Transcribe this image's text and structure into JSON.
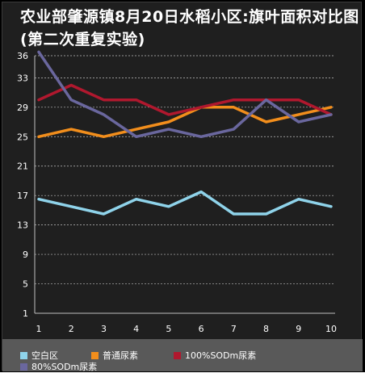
{
  "title": "农业部肇源镇8月20日水稻小区:旗叶面积对比图(第二次重复实验)",
  "colors": {
    "background": "#1f1f1f",
    "legend_bar": "#595959",
    "grid": "#bfbfbf",
    "axis_text": "#ffffff"
  },
  "chart_data": {
    "type": "line",
    "title": "农业部肇源镇8月20日水稻小区:旗叶面积对比图(第二次重复实验)",
    "categories": [
      "1",
      "2",
      "3",
      "4",
      "5",
      "6",
      "7",
      "8",
      "9",
      "10"
    ],
    "y_ticks": [
      "1",
      "5",
      "9",
      "13",
      "17",
      "21",
      "25",
      "29",
      "33",
      "36"
    ],
    "ylim": [
      1,
      36
    ],
    "grid": true,
    "legend_position": "bottom",
    "series": [
      {
        "name": "空白区",
        "color": "#8fd3ea",
        "values": [
          16.5,
          15.5,
          14.5,
          16.5,
          15.5,
          17.5,
          14.5,
          14.5,
          16.5,
          15.5
        ]
      },
      {
        "name": "普通尿素",
        "color": "#f28e1c",
        "values": [
          25,
          26,
          25,
          26,
          27,
          29,
          29,
          27,
          28,
          29
        ]
      },
      {
        "name": "100%SODm尿素",
        "color": "#b0182e",
        "values": [
          30,
          32,
          30,
          30,
          28,
          29,
          30,
          30,
          30,
          28
        ]
      },
      {
        "name": "80%SODm尿素",
        "color": "#6a679e",
        "values": [
          36.5,
          30,
          28,
          25,
          26,
          25,
          26,
          30,
          27,
          28
        ]
      }
    ]
  }
}
